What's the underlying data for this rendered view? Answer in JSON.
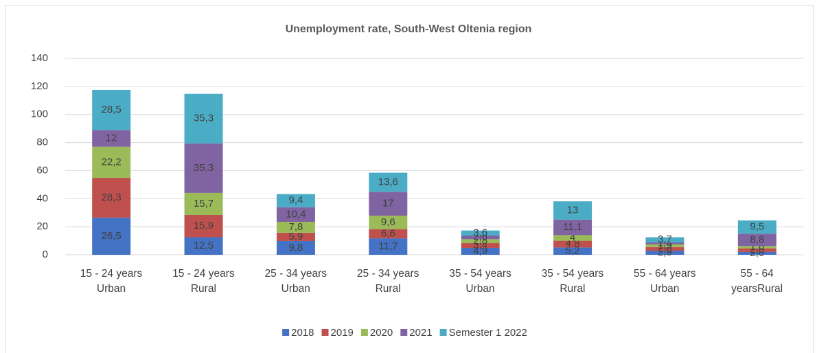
{
  "chart_data": {
    "type": "stacked_bar",
    "title": "Unemployment rate, South-West Oltenia region",
    "categories": [
      "15 - 24 years\nUrban",
      "15 - 24 years\nRural",
      "25 - 34 years\nUrban",
      "25 - 34  years\nRural",
      "35 - 54 years\nUrban",
      "35 - 54 years\nRural",
      "55 - 64 years\nUrban",
      "55 - 64\nyearsRural"
    ],
    "series": [
      {
        "name": "2018",
        "color": "#4472c4",
        "values": [
          26.5,
          12.5,
          9.8,
          11.7,
          4.9,
          5.2,
          2.9,
          2.0
        ],
        "value_labels": [
          "26,5",
          "12,5",
          "9,8",
          "11,7",
          "4,9",
          "5,2",
          "2,9",
          "2,0"
        ]
      },
      {
        "name": "2019",
        "color": "#c0504d",
        "values": [
          28.3,
          15.9,
          5.9,
          6.6,
          3.4,
          4.8,
          2.6,
          2.6
        ],
        "value_labels": [
          "28,3",
          "15,9",
          "5,9",
          "6,6",
          "3,4",
          "4,8",
          "2,6",
          "2,6"
        ]
      },
      {
        "name": "2020",
        "color": "#9bbb59",
        "values": [
          22.2,
          15.7,
          7.8,
          9.6,
          2.8,
          4,
          1.9,
          1.6
        ],
        "value_labels": [
          "22,2",
          "15,7",
          "7,8",
          "9,6",
          "2,8",
          "4",
          "1,9",
          "1,6"
        ]
      },
      {
        "name": "2021",
        "color": "#8064a2",
        "values": [
          12,
          35.3,
          10.4,
          17,
          2.6,
          11.1,
          1.4,
          8.8
        ],
        "value_labels": [
          "12",
          "35,3",
          "10,4",
          "17",
          "2,6",
          "11,1",
          "1,4",
          "8,8"
        ]
      },
      {
        "name": "Semester 1 2022",
        "color": "#4bacc6",
        "values": [
          28.5,
          35.3,
          9.4,
          13.6,
          3.6,
          13,
          3.7,
          9.5
        ],
        "value_labels": [
          "28,5",
          "35,3",
          "9,4",
          "13,6",
          "3,6",
          "13",
          "3,7",
          "9,5"
        ]
      }
    ],
    "ylim": [
      0,
      140
    ],
    "yticks": [
      0,
      20,
      40,
      60,
      80,
      100,
      120,
      140
    ],
    "grid": true,
    "legend": "bottom"
  }
}
